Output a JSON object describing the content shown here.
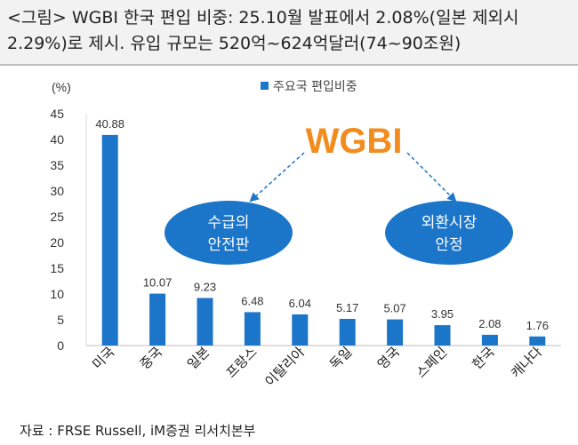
{
  "title": "<그림> WGBI 한국 편입 비중: 25.10월 발표에서 2.08%(일본 제외시 2.29%)로 제시. 유입 규모는 520억~624억달러(74~90조원)",
  "source": "자료 : FRSE Russell, iM증권 리서치본부",
  "annotation": {
    "wgbi_label": "WGBI",
    "ellipse_left": [
      "수급의",
      "안전판"
    ],
    "ellipse_right": [
      "외환시장",
      "안정"
    ]
  },
  "colors": {
    "bar": "#1b75c9",
    "wgbi_text": "#f28c1e",
    "ellipse": "#1b75c9",
    "arrow": "#1b75c9"
  },
  "chart_data": {
    "type": "bar",
    "ylabel": "(%)",
    "ylim": [
      0,
      45
    ],
    "yticks": [
      0,
      5,
      10,
      15,
      20,
      25,
      30,
      35,
      40,
      45
    ],
    "legend": "top",
    "categories": [
      "미국",
      "중국",
      "일본",
      "프랑스",
      "이탈리아",
      "독일",
      "영국",
      "스페인",
      "한국",
      "캐나다"
    ],
    "series": [
      {
        "name": "주요국 편입비중",
        "values": [
          40.88,
          10.07,
          9.23,
          6.48,
          6.04,
          5.17,
          5.07,
          3.95,
          2.08,
          1.76
        ]
      }
    ],
    "data_labels": [
      "40.88",
      "10.07",
      "9.23",
      "6.48",
      "6.04",
      "5.17",
      "5.07",
      "3.95",
      "2.08",
      "1.76"
    ]
  }
}
